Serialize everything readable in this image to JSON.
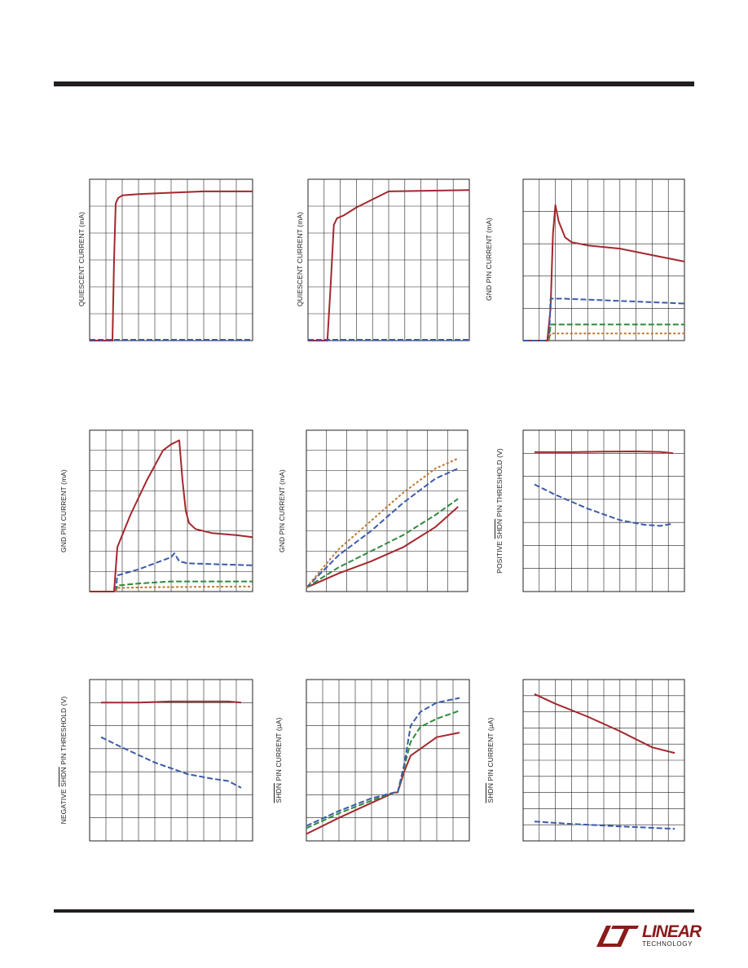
{
  "brand": {
    "name": "LINEAR",
    "subname": "TECHNOLOGY"
  },
  "colors": {
    "red": "#a3282e",
    "blue": "#3b5ba9",
    "green": "#2f8a3e",
    "orange": "#c0772e",
    "grid": "#231f20"
  },
  "chart_data": [
    {
      "type": "line",
      "ylabel": "QUIESCENT CURRENT (mA)",
      "xlim": [
        0,
        10
      ],
      "ylim": [
        0,
        6
      ],
      "grid": {
        "x": 10,
        "y": 6
      },
      "series": [
        {
          "color": "red",
          "style": "solid",
          "x": [
            0,
            1.4,
            1.5,
            1.6,
            1.75,
            2.0,
            3.0,
            5.0,
            7.0,
            10.0
          ],
          "y": [
            0,
            0,
            3.0,
            5.1,
            5.3,
            5.4,
            5.45,
            5.5,
            5.55,
            5.55
          ]
        },
        {
          "color": "blue",
          "style": "dashed",
          "x": [
            0,
            10
          ],
          "y": [
            0.03,
            0.03
          ]
        }
      ]
    },
    {
      "type": "line",
      "ylabel": "QUIESCENT CURRENT (mA)",
      "xlim": [
        0,
        10
      ],
      "ylim": [
        0,
        6
      ],
      "grid": {
        "x": 10,
        "y": 6
      },
      "series": [
        {
          "color": "red",
          "style": "solid",
          "x": [
            0,
            1.2,
            1.4,
            1.6,
            1.8,
            2.2,
            3.0,
            5.0,
            10.0
          ],
          "y": [
            0,
            0,
            2.0,
            4.3,
            4.55,
            4.65,
            4.95,
            5.55,
            5.6
          ]
        },
        {
          "color": "blue",
          "style": "dashed",
          "x": [
            0,
            10
          ],
          "y": [
            0.03,
            0.03
          ]
        }
      ]
    },
    {
      "type": "line",
      "ylabel": "GND PIN CURRENT (mA)",
      "xlim": [
        0,
        10
      ],
      "ylim": [
        0,
        5
      ],
      "grid": {
        "x": 10,
        "y": 5
      },
      "series": [
        {
          "color": "red",
          "style": "solid",
          "x": [
            0,
            1.5,
            1.7,
            1.85,
            2.0,
            2.2,
            2.6,
            3.0,
            4.0,
            6.0,
            8.0,
            10.0
          ],
          "y": [
            0,
            0,
            1.0,
            3.3,
            4.2,
            3.7,
            3.2,
            3.05,
            2.95,
            2.85,
            2.65,
            2.45
          ]
        },
        {
          "color": "blue",
          "style": "dashed",
          "x": [
            0,
            1.6,
            1.7,
            2.5,
            10.0
          ],
          "y": [
            0,
            0,
            1.3,
            1.3,
            1.15
          ]
        },
        {
          "color": "green",
          "style": "dashed",
          "x": [
            1.6,
            1.7,
            10.0
          ],
          "y": [
            0,
            0.5,
            0.5
          ]
        },
        {
          "color": "orange",
          "style": "dashed",
          "x": [
            1.6,
            1.7,
            10.0
          ],
          "y": [
            0,
            0.22,
            0.22
          ]
        }
      ]
    },
    {
      "type": "line",
      "ylabel": "GND PIN CURRENT (mA)",
      "xlim": [
        0,
        10
      ],
      "ylim": [
        0,
        8
      ],
      "grid": {
        "x": 10,
        "y": 8
      },
      "series": [
        {
          "color": "red",
          "style": "solid",
          "x": [
            0,
            1.5,
            1.7,
            2.5,
            3.5,
            4.5,
            5.0,
            5.5,
            5.7,
            5.9,
            6.1,
            6.5,
            7.5,
            9.0,
            10.0
          ],
          "y": [
            0,
            0,
            2.2,
            3.8,
            5.5,
            7.0,
            7.3,
            7.5,
            5.5,
            4.0,
            3.4,
            3.1,
            2.9,
            2.8,
            2.7
          ]
        },
        {
          "color": "blue",
          "style": "dashed",
          "x": [
            1.6,
            1.7,
            3.0,
            4.0,
            5.0,
            5.2,
            5.5,
            6.0,
            8.0,
            10.0
          ],
          "y": [
            0,
            0.8,
            1.1,
            1.4,
            1.7,
            1.9,
            1.5,
            1.4,
            1.35,
            1.3
          ]
        },
        {
          "color": "green",
          "style": "dashed",
          "x": [
            1.6,
            1.7,
            3.0,
            5.0,
            7.0,
            10.0
          ],
          "y": [
            0,
            0.3,
            0.4,
            0.5,
            0.5,
            0.5
          ]
        },
        {
          "color": "orange",
          "style": "dashed",
          "x": [
            1.6,
            1.7,
            4.0,
            10.0
          ],
          "y": [
            0,
            0.18,
            0.22,
            0.25
          ]
        }
      ]
    },
    {
      "type": "line",
      "ylabel": "GND PIN CURRENT (mA)",
      "xlim": [
        0,
        10
      ],
      "ylim": [
        0,
        8
      ],
      "grid": {
        "x": 8,
        "y": 8
      },
      "series": [
        {
          "color": "red",
          "style": "solid",
          "x": [
            0,
            2.0,
            4.0,
            6.0,
            8.0,
            9.4
          ],
          "y": [
            0.2,
            0.9,
            1.5,
            2.2,
            3.2,
            4.2
          ]
        },
        {
          "color": "green",
          "style": "dashed",
          "x": [
            0,
            2.0,
            4.0,
            6.0,
            8.0,
            9.4
          ],
          "y": [
            0.2,
            1.2,
            2.0,
            2.8,
            3.8,
            4.6
          ]
        },
        {
          "color": "blue",
          "style": "dashed",
          "x": [
            0,
            2.0,
            4.0,
            6.0,
            8.0,
            9.4
          ],
          "y": [
            0.2,
            1.8,
            3.0,
            4.4,
            5.6,
            6.1
          ]
        },
        {
          "color": "orange",
          "style": "dashed",
          "x": [
            0,
            2.0,
            4.0,
            6.0,
            8.0,
            9.4
          ],
          "y": [
            0.2,
            2.1,
            3.5,
            4.9,
            6.1,
            6.6
          ]
        }
      ]
    },
    {
      "type": "line",
      "ylabel": "POSITIVE SHDN PIN THRESHOLD (V)",
      "ylabel_overline": "SHDN",
      "xlim": [
        0,
        10
      ],
      "ylim": [
        0,
        7
      ],
      "grid": {
        "x": 10,
        "y": 7
      },
      "series": [
        {
          "color": "red",
          "style": "solid",
          "x": [
            0.7,
            3.0,
            5.0,
            7.0,
            8.5,
            9.3
          ],
          "y": [
            6.05,
            6.05,
            6.07,
            6.08,
            6.06,
            6.0
          ]
        },
        {
          "color": "blue",
          "style": "dashed",
          "x": [
            0.7,
            2.0,
            4.0,
            6.0,
            7.5,
            8.5,
            9.3
          ],
          "y": [
            4.65,
            4.2,
            3.6,
            3.1,
            2.9,
            2.85,
            2.95
          ]
        }
      ]
    },
    {
      "type": "line",
      "ylabel": "NEGATIVE SHDN PIN THRESHOLD (V)",
      "ylabel_overline": "SHDN",
      "xlim": [
        0,
        10
      ],
      "ylim": [
        0,
        7
      ],
      "grid": {
        "x": 10,
        "y": 7
      },
      "series": [
        {
          "color": "red",
          "style": "solid",
          "x": [
            0.7,
            3.0,
            5.0,
            7.0,
            8.5,
            9.3
          ],
          "y": [
            6.0,
            6.0,
            6.05,
            6.05,
            6.05,
            6.0
          ]
        },
        {
          "color": "blue",
          "style": "dashed",
          "x": [
            0.7,
            2.0,
            4.0,
            6.0,
            7.5,
            8.5,
            9.3
          ],
          "y": [
            4.5,
            4.05,
            3.4,
            2.9,
            2.7,
            2.6,
            2.3
          ]
        }
      ]
    },
    {
      "type": "line",
      "ylabel": "SHDN PIN CURRENT (µA)",
      "ylabel_overline": "SHDN",
      "xlim": [
        0,
        10
      ],
      "ylim": [
        0,
        7
      ],
      "grid": {
        "x": 10,
        "y": 7
      },
      "series": [
        {
          "color": "red",
          "style": "solid",
          "x": [
            0,
            2.0,
            4.0,
            5.4,
            5.6,
            6.0,
            6.4,
            7.0,
            8.0,
            9.4
          ],
          "y": [
            0.3,
            1.0,
            1.65,
            2.1,
            2.1,
            3.0,
            3.7,
            4.0,
            4.5,
            4.7
          ]
        },
        {
          "color": "green",
          "style": "dashed",
          "x": [
            0,
            2.0,
            4.0,
            5.4,
            5.6,
            6.0,
            6.4,
            7.0,
            8.0,
            9.4
          ],
          "y": [
            0.55,
            1.2,
            1.75,
            2.1,
            2.1,
            3.2,
            4.3,
            4.95,
            5.3,
            5.65
          ]
        },
        {
          "color": "blue",
          "style": "dashed",
          "x": [
            0,
            2.0,
            4.0,
            5.4,
            5.6,
            6.0,
            6.4,
            7.0,
            8.0,
            9.4
          ],
          "y": [
            0.65,
            1.3,
            1.85,
            2.1,
            2.1,
            3.3,
            5.0,
            5.6,
            6.0,
            6.2
          ]
        }
      ]
    },
    {
      "type": "line",
      "ylabel": "SHDN PIN CURRENT (µA)",
      "ylabel_overline": "SHDN",
      "xlim": [
        0,
        10
      ],
      "ylim": [
        0,
        10
      ],
      "grid": {
        "x": 10,
        "y": 10
      },
      "series": [
        {
          "color": "red",
          "style": "solid",
          "x": [
            0.7,
            2.0,
            4.0,
            6.0,
            8.0,
            9.4
          ],
          "y": [
            9.1,
            8.5,
            7.7,
            6.8,
            5.8,
            5.45
          ]
        },
        {
          "color": "blue",
          "style": "dashed",
          "x": [
            0.7,
            3.0,
            6.0,
            9.4
          ],
          "y": [
            1.2,
            1.05,
            0.9,
            0.75
          ]
        }
      ]
    }
  ]
}
